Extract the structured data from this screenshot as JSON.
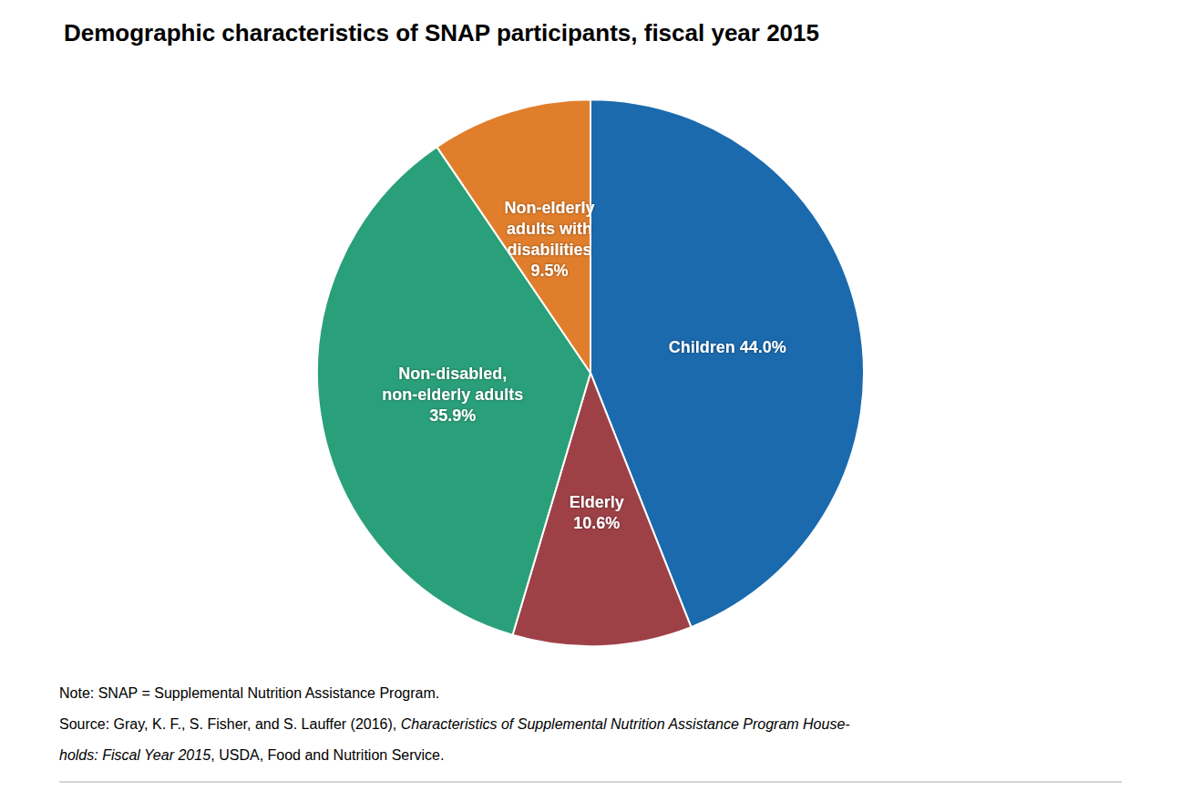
{
  "chart_data": {
    "type": "pie",
    "title": "Demographic characteristics of SNAP participants, fiscal year 2015",
    "categories": [
      "Children 44.0%",
      "Elderly\n10.6%",
      "Non-disabled,\nnon-elderly adults\n35.9%",
      "Non-elderly\nadults with\ndisabilities\n9.5%"
    ],
    "values": [
      44.0,
      10.6,
      35.9,
      9.5
    ],
    "colors": [
      "#1B6AAE",
      "#9E4147",
      "#2AA07A",
      "#E07E2C"
    ],
    "annotations": [
      [
        "Note: SNAP = Supplemental Nutrition Assistance Program."
      ],
      [
        "Source: Gray, K. F., S. Fisher, and S. Lauffer (2016), ",
        "Characteristics of Supplemental Nutrition Assistance Program House-"
      ],
      [
        "holds: Fiscal Year 2015",
        ", USDA, Food and Nutrition Service."
      ]
    ]
  }
}
